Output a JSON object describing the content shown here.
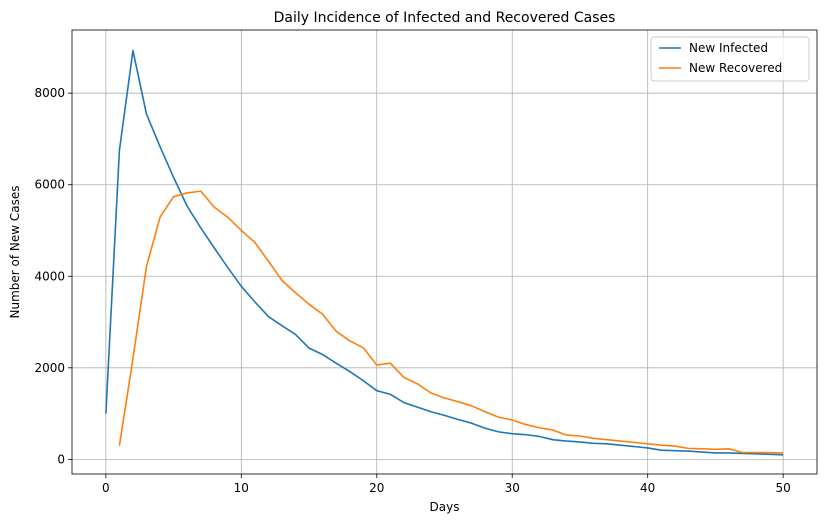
{
  "chart_data": {
    "type": "line",
    "title": "Daily Incidence of Infected and Recovered Cases",
    "xlabel": "Days",
    "ylabel": "Number of New Cases",
    "xlim": [
      -2.5,
      52.5
    ],
    "ylim": [
      -320,
      9380
    ],
    "xticks": [
      0,
      10,
      20,
      30,
      40,
      50
    ],
    "yticks": [
      0,
      2000,
      4000,
      6000,
      8000
    ],
    "grid": true,
    "legend_position": "top-right",
    "series": [
      {
        "name": "New Infected",
        "color": "#1f77b4",
        "x": [
          0,
          1,
          2,
          3,
          4,
          5,
          6,
          7,
          8,
          9,
          10,
          11,
          12,
          13,
          14,
          15,
          16,
          17,
          18,
          19,
          20,
          21,
          22,
          23,
          24,
          25,
          26,
          27,
          28,
          29,
          30,
          31,
          32,
          33,
          34,
          35,
          36,
          37,
          38,
          39,
          40,
          41,
          42,
          43,
          44,
          45,
          46,
          47,
          48,
          49,
          50
        ],
        "values": [
          1000,
          6750,
          8930,
          7540,
          6830,
          6160,
          5530,
          5060,
          4620,
          4190,
          3780,
          3440,
          3120,
          2920,
          2730,
          2430,
          2290,
          2100,
          1920,
          1720,
          1500,
          1420,
          1240,
          1140,
          1040,
          960,
          870,
          790,
          680,
          600,
          560,
          540,
          500,
          430,
          400,
          380,
          350,
          340,
          310,
          280,
          250,
          200,
          190,
          180,
          160,
          140,
          140,
          130,
          120,
          110,
          100
        ]
      },
      {
        "name": "New Recovered",
        "color": "#ff7f0e",
        "x": [
          1,
          2,
          3,
          4,
          5,
          6,
          7,
          8,
          9,
          10,
          11,
          12,
          13,
          14,
          15,
          16,
          17,
          18,
          19,
          20,
          21,
          22,
          23,
          24,
          25,
          26,
          27,
          28,
          29,
          30,
          31,
          32,
          33,
          34,
          35,
          36,
          37,
          38,
          39,
          40,
          41,
          42,
          43,
          44,
          45,
          46,
          47,
          48,
          49,
          50
        ],
        "values": [
          300,
          2200,
          4220,
          5290,
          5740,
          5820,
          5860,
          5510,
          5290,
          5000,
          4740,
          4330,
          3910,
          3640,
          3390,
          3170,
          2800,
          2590,
          2440,
          2060,
          2100,
          1790,
          1650,
          1450,
          1340,
          1260,
          1170,
          1040,
          920,
          860,
          760,
          690,
          640,
          530,
          510,
          460,
          430,
          400,
          370,
          340,
          310,
          290,
          240,
          230,
          220,
          230,
          150,
          150,
          150,
          140
        ]
      }
    ]
  }
}
